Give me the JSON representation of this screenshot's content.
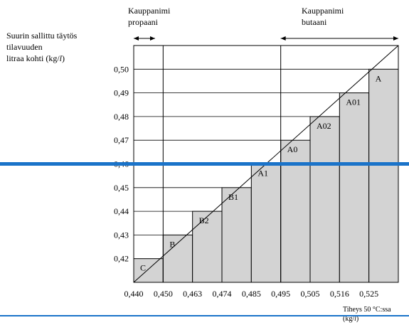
{
  "chart_data": {
    "type": "bar",
    "title": "",
    "ylabel_lines": [
      "Suurin sallittu täytös",
      "tilavuuden",
      "litraa kohti (kg/",
      "l",
      ")"
    ],
    "xlabel_lines": [
      "Tiheys 50 °C:ssa",
      "(kg/",
      "l",
      ")"
    ],
    "x_tick_labels": [
      "0,440",
      "0,450",
      "0,463",
      "0,474",
      "0,485",
      "0,495",
      "0,505",
      "0,516",
      "0,525"
    ],
    "y_tick_labels": [
      "0,42",
      "0,43",
      "0,44",
      "0,45",
      "0,46",
      "0,47",
      "0,48",
      "0,49",
      "0,50"
    ],
    "ylim": [
      0.41,
      0.51
    ],
    "categories": [
      "C",
      "B",
      "B2",
      "B1",
      "A1",
      "A0",
      "A02",
      "A01",
      "A"
    ],
    "x_ranges": [
      [
        0.44,
        0.45
      ],
      [
        0.45,
        0.463
      ],
      [
        0.463,
        0.474
      ],
      [
        0.474,
        0.485
      ],
      [
        0.485,
        0.495
      ],
      [
        0.495,
        0.505
      ],
      [
        0.505,
        0.516
      ],
      [
        0.516,
        0.525
      ],
      [
        0.525,
        0.535
      ]
    ],
    "values": [
      0.42,
      0.43,
      0.44,
      0.45,
      0.46,
      0.47,
      0.48,
      0.49,
      0.5
    ],
    "annotations": [
      {
        "lines": [
          "Kauppanimi",
          "propaani"
        ],
        "range": [
          0.44,
          0.45
        ]
      },
      {
        "lines": [
          "Kauppanimi",
          "butaani"
        ],
        "range": [
          0.495,
          0.535
        ]
      }
    ]
  }
}
